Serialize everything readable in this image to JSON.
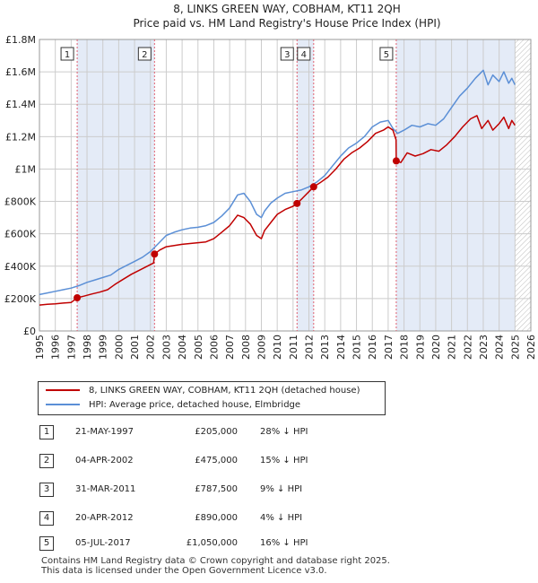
{
  "colors": {
    "property": "#c00000",
    "hpi": "#5b8fd6",
    "shade": "#e4ebf7",
    "marker_line": "#e06070",
    "grid": "#cccccc"
  },
  "chart_data": {
    "type": "line",
    "title": "8, LINKS GREEN WAY, COBHAM, KT11 2QH",
    "subtitle": "Price paid vs. HM Land Registry's House Price Index (HPI)",
    "xlim": [
      1995,
      2026
    ],
    "ylim": [
      0,
      1800000
    ],
    "xticks": [
      "1995",
      "1996",
      "1997",
      "1998",
      "1999",
      "2000",
      "2001",
      "2002",
      "2003",
      "2004",
      "2005",
      "2006",
      "2007",
      "2008",
      "2009",
      "2010",
      "2011",
      "2012",
      "2013",
      "2014",
      "2015",
      "2016",
      "2017",
      "2018",
      "2019",
      "2020",
      "2021",
      "2022",
      "2023",
      "2024",
      "2025",
      "2026"
    ],
    "yticks": [
      {
        "value": 0,
        "label": "£0"
      },
      {
        "value": 200000,
        "label": "£200K"
      },
      {
        "value": 400000,
        "label": "£400K"
      },
      {
        "value": 600000,
        "label": "£600K"
      },
      {
        "value": 800000,
        "label": "£800K"
      },
      {
        "value": 1000000,
        "label": "£1M"
      },
      {
        "value": 1200000,
        "label": "£1.2M"
      },
      {
        "value": 1400000,
        "label": "£1.4M"
      },
      {
        "value": 1600000,
        "label": "£1.6M"
      },
      {
        "value": 1800000,
        "label": "£1.8M"
      }
    ],
    "shaded_ranges": [
      [
        1997.38,
        2002.26
      ],
      [
        2011.25,
        2012.3
      ],
      [
        2017.51,
        2025.0
      ]
    ],
    "hatched_range": [
      2025.0,
      2026
    ],
    "series": [
      {
        "name": "8, LINKS GREEN WAY, COBHAM, KT11 2QH (detached house)",
        "x": [
          1995.0,
          1995.5,
          1996.0,
          1996.5,
          1997.0,
          1997.38,
          1997.8,
          1998.3,
          1998.8,
          1999.3,
          1999.8,
          2000.3,
          2000.8,
          2001.3,
          2001.8,
          2002.2,
          2002.26,
          2002.6,
          2003.0,
          2003.5,
          2004.0,
          2004.5,
          2005.0,
          2005.5,
          2006.0,
          2006.5,
          2007.0,
          2007.5,
          2007.9,
          2008.3,
          2008.7,
          2009.0,
          2009.2,
          2009.6,
          2010.0,
          2010.5,
          2011.0,
          2011.25,
          2011.6,
          2012.0,
          2012.3,
          2012.7,
          2013.2,
          2013.7,
          2014.2,
          2014.7,
          2015.2,
          2015.7,
          2016.2,
          2016.7,
          2017.0,
          2017.3,
          2017.5,
          2017.51,
          2017.8,
          2018.2,
          2018.7,
          2019.2,
          2019.7,
          2020.2,
          2020.7,
          2021.2,
          2021.7,
          2022.2,
          2022.6,
          2022.9,
          2023.3,
          2023.6,
          2024.0,
          2024.3,
          2024.6,
          2024.8,
          2025.0
        ],
        "y": [
          160000,
          165000,
          168000,
          172000,
          176000,
          205000,
          215000,
          228000,
          240000,
          255000,
          290000,
          320000,
          350000,
          375000,
          400000,
          420000,
          475000,
          500000,
          520000,
          528000,
          535000,
          540000,
          545000,
          550000,
          570000,
          610000,
          650000,
          715000,
          700000,
          660000,
          590000,
          570000,
          620000,
          670000,
          720000,
          750000,
          770000,
          787500,
          820000,
          860000,
          890000,
          915000,
          950000,
          1000000,
          1060000,
          1100000,
          1130000,
          1170000,
          1220000,
          1240000,
          1260000,
          1240000,
          1180000,
          1050000,
          1040000,
          1100000,
          1080000,
          1095000,
          1120000,
          1110000,
          1150000,
          1200000,
          1260000,
          1310000,
          1330000,
          1250000,
          1300000,
          1240000,
          1280000,
          1320000,
          1250000,
          1300000,
          1270000
        ]
      },
      {
        "name": "HPI: Average price, detached house, Elmbridge",
        "x": [
          1995.0,
          1995.5,
          1996.0,
          1996.5,
          1997.0,
          1997.5,
          1998.0,
          1998.5,
          1999.0,
          1999.5,
          2000.0,
          2000.5,
          2001.0,
          2001.5,
          2002.0,
          2002.5,
          2003.0,
          2003.5,
          2004.0,
          2004.5,
          2005.0,
          2005.5,
          2006.0,
          2006.5,
          2007.0,
          2007.5,
          2007.9,
          2008.3,
          2008.7,
          2009.0,
          2009.2,
          2009.6,
          2010.0,
          2010.5,
          2011.0,
          2011.5,
          2012.0,
          2012.5,
          2013.0,
          2013.5,
          2014.0,
          2014.5,
          2015.0,
          2015.5,
          2016.0,
          2016.5,
          2017.0,
          2017.3,
          2017.6,
          2018.0,
          2018.5,
          2019.0,
          2019.5,
          2020.0,
          2020.5,
          2021.0,
          2021.5,
          2022.0,
          2022.5,
          2023.0,
          2023.3,
          2023.6,
          2024.0,
          2024.3,
          2024.6,
          2024.8,
          2025.0
        ],
        "y": [
          225000,
          235000,
          245000,
          255000,
          265000,
          280000,
          300000,
          315000,
          330000,
          345000,
          380000,
          405000,
          430000,
          455000,
          490000,
          540000,
          590000,
          610000,
          625000,
          635000,
          640000,
          650000,
          670000,
          710000,
          760000,
          840000,
          850000,
          800000,
          720000,
          700000,
          740000,
          790000,
          820000,
          850000,
          860000,
          870000,
          890000,
          920000,
          960000,
          1020000,
          1080000,
          1130000,
          1160000,
          1200000,
          1260000,
          1290000,
          1300000,
          1250000,
          1220000,
          1240000,
          1270000,
          1260000,
          1280000,
          1270000,
          1310000,
          1380000,
          1450000,
          1500000,
          1560000,
          1610000,
          1520000,
          1580000,
          1540000,
          1600000,
          1530000,
          1560000,
          1520000
        ]
      }
    ],
    "sales": [
      {
        "n": "1",
        "x": 1997.38,
        "y": 205000
      },
      {
        "n": "2",
        "x": 2002.26,
        "y": 475000
      },
      {
        "n": "3",
        "x": 2011.25,
        "y": 787500
      },
      {
        "n": "4",
        "x": 2012.3,
        "y": 890000
      },
      {
        "n": "5",
        "x": 2017.51,
        "y": 1050000
      }
    ]
  },
  "legend": {
    "property": "8, LINKS GREEN WAY, COBHAM, KT11 2QH (detached house)",
    "hpi": "HPI: Average price, detached house, Elmbridge"
  },
  "table": [
    {
      "n": "1",
      "date": "21-MAY-1997",
      "price": "£205,000",
      "hpi": "28% ↓ HPI"
    },
    {
      "n": "2",
      "date": "04-APR-2002",
      "price": "£475,000",
      "hpi": "15% ↓ HPI"
    },
    {
      "n": "3",
      "date": "31-MAR-2011",
      "price": "£787,500",
      "hpi": "9% ↓ HPI"
    },
    {
      "n": "4",
      "date": "20-APR-2012",
      "price": "£890,000",
      "hpi": "4% ↓ HPI"
    },
    {
      "n": "5",
      "date": "05-JUL-2017",
      "price": "£1,050,000",
      "hpi": "16% ↓ HPI"
    }
  ],
  "footer": {
    "line1": "Contains HM Land Registry data © Crown copyright and database right 2025.",
    "line2": "This data is licensed under the Open Government Licence v3.0."
  }
}
